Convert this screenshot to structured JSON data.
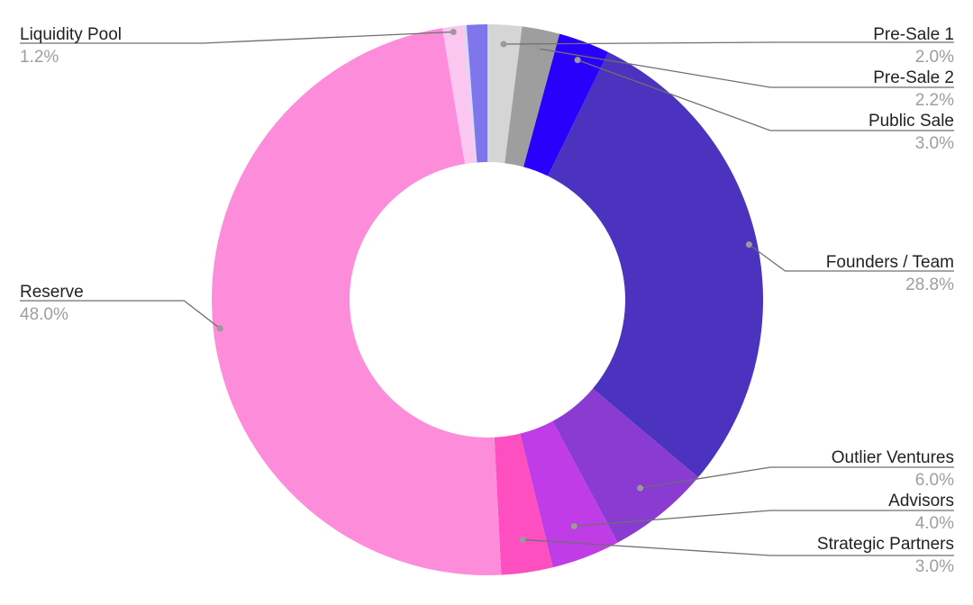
{
  "chart_data": {
    "type": "pie",
    "variant": "donut",
    "legend": "none",
    "slices": [
      {
        "label": "Pre-Sale 1",
        "value": 2.0,
        "value_label": "2.0%",
        "color": "#d5d5d5"
      },
      {
        "label": "Pre-Sale 2",
        "value": 2.2,
        "value_label": "2.2%",
        "color": "#9e9e9e"
      },
      {
        "label": "Public Sale",
        "value": 3.0,
        "value_label": "3.0%",
        "color": "#2a00fd"
      },
      {
        "label": "Founders / Team",
        "value": 28.8,
        "value_label": "28.8%",
        "color": "#4b32bf"
      },
      {
        "label": "Outlier Ventures",
        "value": 6.0,
        "value_label": "6.0%",
        "color": "#8a3cd2"
      },
      {
        "label": "Advisors",
        "value": 4.0,
        "value_label": "4.0%",
        "color": "#c03ce6"
      },
      {
        "label": "Strategic Partners",
        "value": 3.0,
        "value_label": "3.0%",
        "color": "#fd4fc0"
      },
      {
        "label": "Reserve",
        "value": 48.0,
        "value_label": "48.0%",
        "color": "#fd8ddb"
      },
      {
        "label": "Liquidity Pool",
        "value": 1.2,
        "value_label": "1.2%",
        "color": "#fbc6ef"
      },
      {
        "label": "",
        "value": 0.2,
        "value_label": "",
        "color": "#dcd6f5"
      },
      {
        "label": "",
        "value": 1.2,
        "value_label": "",
        "color": "#7f76ec"
      }
    ]
  }
}
